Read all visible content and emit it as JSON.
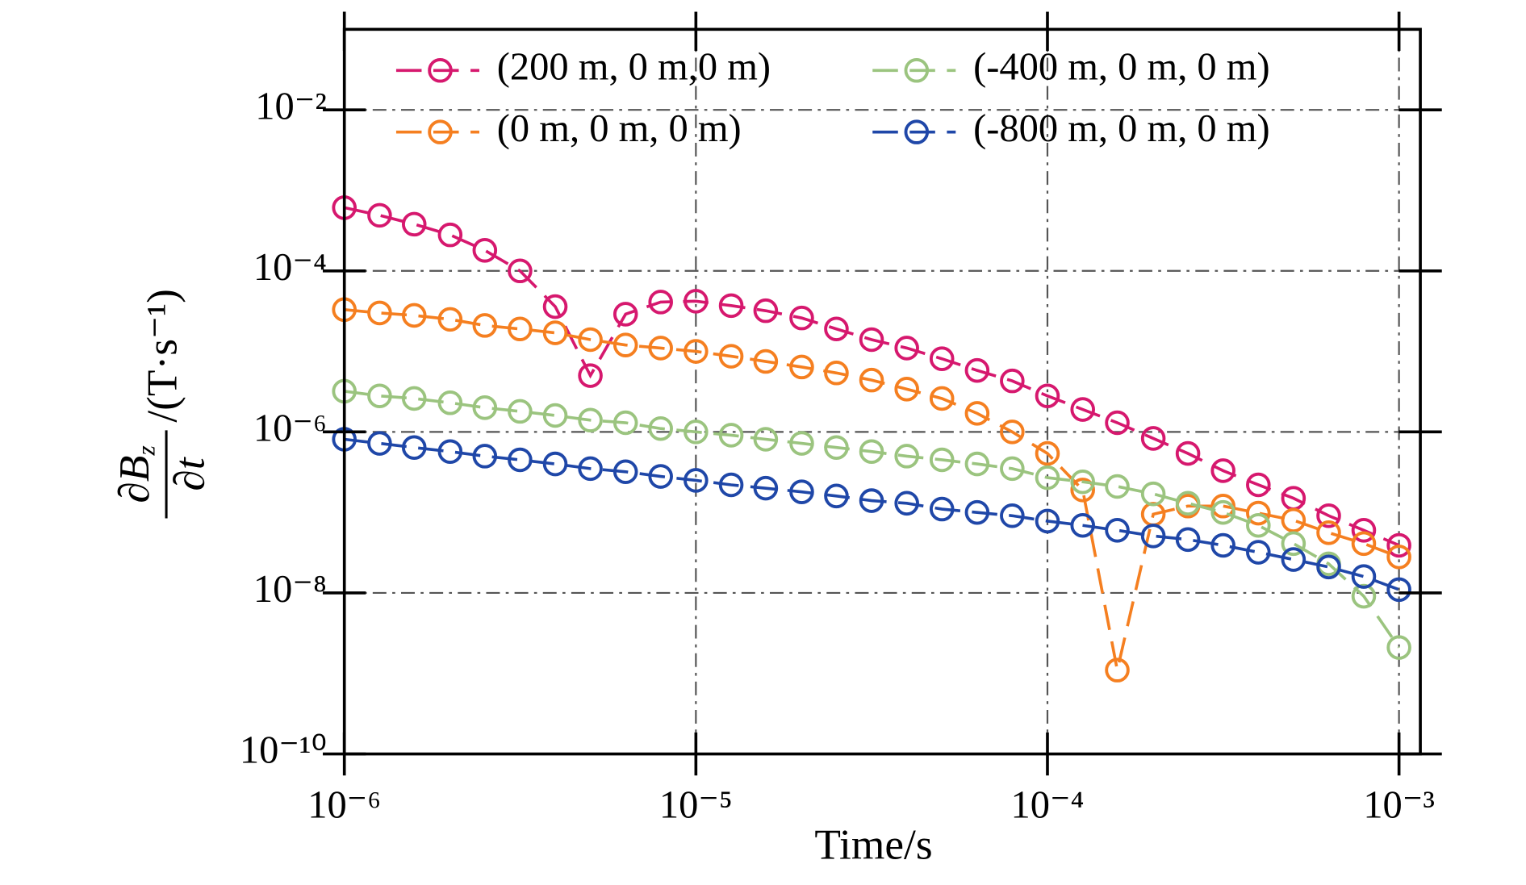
{
  "chart_data": {
    "type": "line",
    "xlabel": "Time/s",
    "ylabel": {
      "numerator": "∂",
      "symbol": "B",
      "subscript": "z",
      "denominator": "∂t",
      "unit": "/(T·s⁻¹)"
    },
    "log_x": true,
    "log_y": true,
    "grid": true,
    "legend": "upper right",
    "xlim": [
      1e-06,
      0.00115
    ],
    "ylim": [
      1e-10,
      0.1
    ],
    "xticks": [
      {
        "value": 1e-06,
        "label": "10⁻⁶"
      },
      {
        "value": 1e-05,
        "label": "10⁻⁵"
      },
      {
        "value": 0.0001,
        "label": "10⁻⁴"
      },
      {
        "value": 0.001,
        "label": "10⁻³"
      }
    ],
    "yticks": [
      {
        "value": 1e-10,
        "label": "10⁻¹⁰"
      },
      {
        "value": 1e-08,
        "label": "10⁻⁸"
      },
      {
        "value": 1e-06,
        "label": "10⁻⁶"
      },
      {
        "value": 0.0001,
        "label": "10⁻⁴"
      },
      {
        "value": 0.01,
        "label": "10⁻²"
      }
    ],
    "x": [
      1e-06,
      1.26e-06,
      1.58e-06,
      2e-06,
      2.51e-06,
      3.16e-06,
      3.98e-06,
      5.01e-06,
      6.31e-06,
      7.94e-06,
      1e-05,
      1.26e-05,
      1.58e-05,
      2e-05,
      2.51e-05,
      3.16e-05,
      3.98e-05,
      5.01e-05,
      6.31e-05,
      7.94e-05,
      0.0001,
      0.000126,
      0.000158,
      0.0002,
      0.000251,
      0.000316,
      0.000398,
      0.000501,
      0.000631,
      0.000794,
      0.001
    ],
    "series": [
      {
        "name": "(200 m, 0 m,0 m)",
        "color": "#d6186e",
        "values": [
          0.00061,
          0.00049,
          0.00038,
          0.00028,
          0.00018,
          0.0001,
          3.6e-05,
          5e-06,
          2.9e-05,
          4.1e-05,
          4.2e-05,
          3.7e-05,
          3.2e-05,
          2.6e-05,
          1.9e-05,
          1.4e-05,
          1.1e-05,
          8.1e-06,
          5.8e-06,
          4.3e-06,
          2.8e-06,
          1.9e-06,
          1.3e-06,
          8.3e-07,
          5.4e-07,
          3.3e-07,
          2.2e-07,
          1.5e-07,
          9.1e-08,
          6e-08,
          3.9e-08
        ]
      },
      {
        "name": "(0 m, 0 m, 0 m)",
        "color": "#f57f20",
        "values": [
          3.3e-05,
          3e-05,
          2.8e-05,
          2.5e-05,
          2.1e-05,
          1.9e-05,
          1.7e-05,
          1.4e-05,
          1.2e-05,
          1.1e-05,
          1e-05,
          8.7e-06,
          7.5e-06,
          6.4e-06,
          5.4e-06,
          4.4e-06,
          3.4e-06,
          2.6e-06,
          1.7e-06,
          1e-06,
          5.4e-07,
          1.9e-07,
          1.1e-09,
          9.5e-08,
          1.2e-07,
          1.2e-07,
          9.8e-08,
          8e-08,
          5.6e-08,
          4.1e-08,
          2.8e-08
        ]
      },
      {
        "name": "(-400 m, 0 m, 0 m)",
        "color": "#9bc47f",
        "values": [
          3.2e-06,
          2.8e-06,
          2.6e-06,
          2.3e-06,
          2e-06,
          1.8e-06,
          1.6e-06,
          1.4e-06,
          1.3e-06,
          1.1e-06,
          1e-06,
          9.1e-07,
          8.1e-07,
          7.2e-07,
          6.4e-07,
          5.7e-07,
          5e-07,
          4.5e-07,
          4e-07,
          3.5e-07,
          2.7e-07,
          2.4e-07,
          2.1e-07,
          1.7e-07,
          1.3e-07,
          1e-07,
          6.9e-08,
          4.1e-08,
          2.3e-08,
          9.1e-09,
          2.1e-09
        ]
      },
      {
        "name": "(-800 m, 0 m, 0 m)",
        "color": "#1f47a8",
        "values": [
          8.1e-07,
          7.2e-07,
          6.4e-07,
          5.7e-07,
          5e-07,
          4.5e-07,
          4e-07,
          3.5e-07,
          3.2e-07,
          2.8e-07,
          2.5e-07,
          2.2e-07,
          2e-07,
          1.8e-07,
          1.6e-07,
          1.4e-07,
          1.3e-07,
          1.1e-07,
          1e-07,
          9.1e-08,
          7.8e-08,
          6.9e-08,
          6e-08,
          5.1e-08,
          4.6e-08,
          3.9e-08,
          3.2e-08,
          2.6e-08,
          2.1e-08,
          1.6e-08,
          1.1e-08
        ]
      }
    ]
  }
}
